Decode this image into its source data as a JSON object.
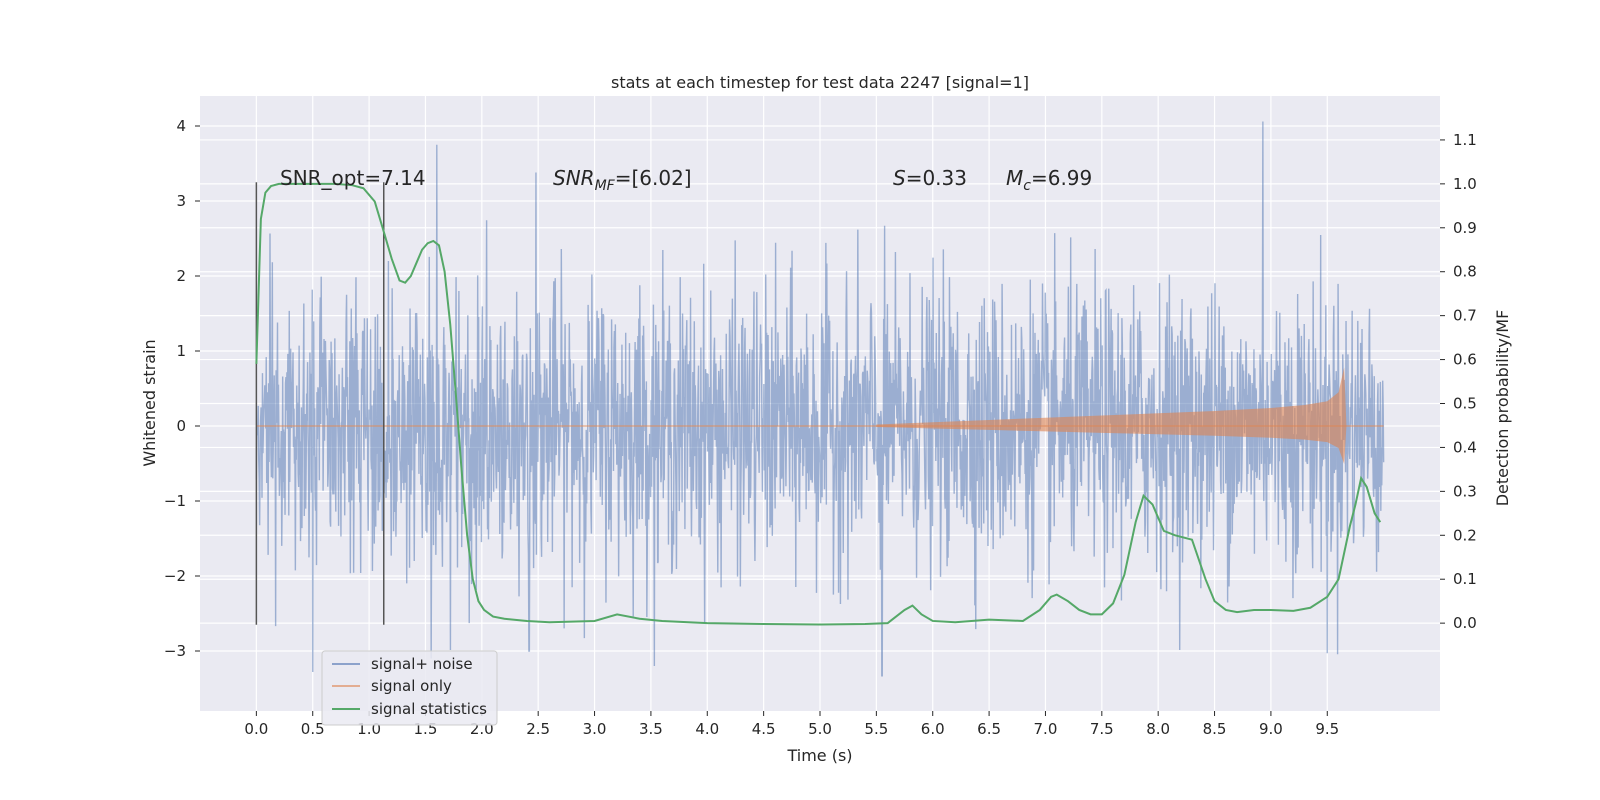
{
  "chart_data": {
    "type": "line",
    "title": "stats at each timestep for test data 2247 [signal=1]",
    "xlabel": "Time (s)",
    "ylabel_left": "Whitened strain",
    "ylabel_right": "Detection probability/MF",
    "xlim": [
      -0.5,
      10.5
    ],
    "ylim_left": [
      -3.8,
      4.4
    ],
    "ylim_right": [
      -0.2,
      1.2
    ],
    "x_ticks": [
      "0.0",
      "0.5",
      "1.0",
      "1.5",
      "2.0",
      "2.5",
      "3.0",
      "3.5",
      "4.0",
      "4.5",
      "5.0",
      "5.5",
      "6.0",
      "6.5",
      "7.0",
      "7.5",
      "8.0",
      "8.5",
      "9.0",
      "9.5"
    ],
    "y_ticks_left": [
      "4",
      "3",
      "2",
      "1",
      "0",
      "−1",
      "−2",
      "−3"
    ],
    "y_ticks_right": [
      "1.1",
      "1.0",
      "0.9",
      "0.8",
      "0.7",
      "0.6",
      "0.5",
      "0.4",
      "0.3",
      "0.2",
      "0.1",
      "0.0"
    ],
    "grid": true,
    "background": "#eaeaf2",
    "legend_position": "lower-left",
    "series": [
      {
        "name": "signal+ noise",
        "color": "#4c72b0",
        "axis": "left",
        "style": "dense noise trace, about ±1.5 core with spikes to ±3.5",
        "x_range": [
          0.0,
          10.0
        ],
        "notable_peaks": [
          [
            1.6,
            3.75
          ],
          [
            2.48,
            3.38
          ],
          [
            8.93,
            4.06
          ],
          [
            5.55,
            -3.33
          ],
          [
            0.5,
            -3.28
          ],
          [
            1.55,
            -3.1
          ],
          [
            2.42,
            -3.0
          ],
          [
            9.5,
            -3.03
          ]
        ]
      },
      {
        "name": "signal only",
        "color": "#dd8452",
        "axis": "left",
        "style": "chirp: amplitude grows from ~0 at 5.5 s to ~0.8 near 9.65 s, then ends",
        "envelope": {
          "x": [
            5.5,
            6.0,
            6.5,
            7.0,
            7.5,
            8.0,
            8.5,
            9.0,
            9.3,
            9.5,
            9.6,
            9.65,
            9.67
          ],
          "amplitude": [
            0.02,
            0.05,
            0.08,
            0.11,
            0.14,
            0.17,
            0.2,
            0.24,
            0.28,
            0.33,
            0.45,
            0.78,
            0.0
          ]
        }
      },
      {
        "name": "signal statistics",
        "color": "#55a868",
        "axis": "right",
        "x": [
          0.0,
          0.04,
          0.08,
          0.13,
          0.2,
          0.3,
          0.5,
          0.7,
          0.85,
          0.95,
          1.05,
          1.12,
          1.2,
          1.27,
          1.32,
          1.37,
          1.42,
          1.47,
          1.52,
          1.57,
          1.62,
          1.67,
          1.72,
          1.77,
          1.82,
          1.87,
          1.92,
          1.97,
          2.02,
          2.1,
          2.2,
          2.4,
          2.6,
          3.0,
          3.2,
          3.4,
          3.6,
          4.0,
          4.5,
          5.0,
          5.4,
          5.6,
          5.75,
          5.82,
          5.9,
          6.0,
          6.2,
          6.5,
          6.8,
          6.95,
          7.05,
          7.1,
          7.2,
          7.3,
          7.4,
          7.5,
          7.6,
          7.7,
          7.8,
          7.87,
          7.95,
          8.05,
          8.15,
          8.3,
          8.42,
          8.5,
          8.6,
          8.7,
          8.85,
          9.0,
          9.2,
          9.35,
          9.5,
          9.6,
          9.65,
          9.7,
          9.75,
          9.8,
          9.85,
          9.92,
          9.97
        ],
        "values": [
          0.59,
          0.92,
          0.98,
          0.995,
          1.0,
          1.0,
          1.0,
          1.0,
          0.997,
          0.99,
          0.96,
          0.9,
          0.83,
          0.78,
          0.775,
          0.79,
          0.82,
          0.85,
          0.865,
          0.87,
          0.86,
          0.8,
          0.68,
          0.52,
          0.35,
          0.2,
          0.1,
          0.05,
          0.03,
          0.015,
          0.01,
          0.005,
          0.002,
          0.005,
          0.02,
          0.01,
          0.005,
          0.0,
          -0.002,
          -0.003,
          -0.002,
          0.0,
          0.03,
          0.04,
          0.02,
          0.005,
          0.002,
          0.008,
          0.005,
          0.03,
          0.06,
          0.065,
          0.05,
          0.03,
          0.02,
          0.02,
          0.045,
          0.11,
          0.23,
          0.29,
          0.27,
          0.21,
          0.2,
          0.19,
          0.1,
          0.05,
          0.03,
          0.025,
          0.03,
          0.03,
          0.028,
          0.035,
          0.06,
          0.1,
          0.16,
          0.22,
          0.27,
          0.33,
          0.31,
          0.25,
          0.23
        ]
      }
    ],
    "vertical_markers": [
      {
        "x": 0.0,
        "y_range": [
          -2.65,
          3.25
        ],
        "color": "#555555"
      },
      {
        "x": 1.13,
        "y_range": [
          -2.65,
          3.25
        ],
        "color": "#555555"
      }
    ],
    "annotations": {
      "snr_opt": "SNR_opt=7.14",
      "snr_mf_main": "SNR",
      "snr_mf_sub": "MF",
      "snr_mf_value": "=[6.02]",
      "s_symbol": "S",
      "s_value": "=0.33",
      "mc_symbol": "M",
      "mc_sub": "c",
      "mc_value": "=6.99"
    }
  }
}
